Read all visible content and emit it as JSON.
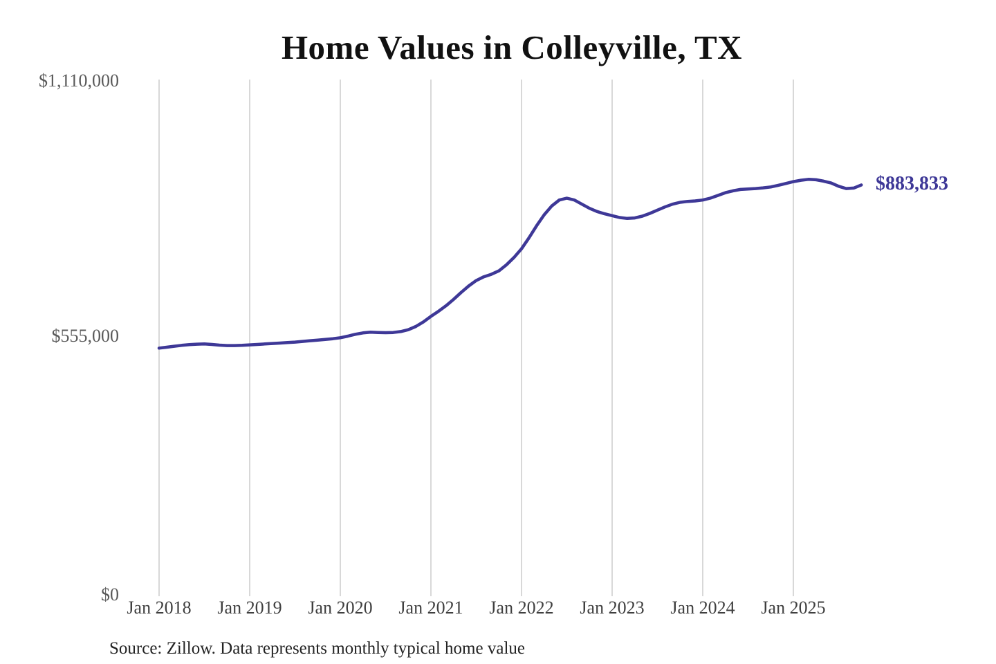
{
  "title": "Home Values in Colleyville, TX",
  "end_label": "$883,833",
  "source_note": "Source: Zillow. Data represents monthly typical home value",
  "colors": {
    "line": "#3e3897",
    "end_label_text": "#3e3897",
    "grid": "#cccccc",
    "y_tick_text": "#595959",
    "x_tick_text": "#3f3f3f",
    "title_text": "#111111",
    "source_text": "#232323",
    "background": "#ffffff"
  },
  "chart_data": {
    "type": "line",
    "title": "Home Values in Colleyville, TX",
    "xlabel": "",
    "ylabel": "",
    "ylim": [
      0,
      1110000
    ],
    "y_ticks": [
      0,
      555000,
      1110000
    ],
    "y_tick_labels": [
      "$0",
      "$555,000",
      "$1,110,000"
    ],
    "x_tick_labels": [
      "Jan 2018",
      "Jan 2019",
      "Jan 2020",
      "Jan 2021",
      "Jan 2022",
      "Jan 2023",
      "Jan 2024",
      "Jan 2025"
    ],
    "grid": "vertical-only",
    "legend_position": "none",
    "end_value": 883833,
    "series": [
      {
        "name": "Monthly typical home value",
        "interval": "monthly",
        "start_month": "2018-01",
        "end_month": "2025-10",
        "values": [
          529000,
          531000,
          533000,
          535000,
          536500,
          537500,
          538000,
          537000,
          535500,
          534500,
          534500,
          535000,
          536000,
          537000,
          538000,
          539000,
          540000,
          541000,
          542000,
          543500,
          545000,
          546500,
          548000,
          549500,
          551500,
          555000,
          559000,
          562000,
          563500,
          563000,
          562500,
          563000,
          565000,
          569000,
          576000,
          586000,
          598000,
          609000,
          621000,
          635000,
          650000,
          664000,
          676000,
          684000,
          689500,
          697000,
          710000,
          726000,
          745000,
          769000,
          795000,
          819000,
          838000,
          851000,
          855000,
          851000,
          842000,
          833000,
          826000,
          821000,
          817000,
          813000,
          811000,
          812000,
          816000,
          822000,
          829000,
          836000,
          842000,
          846000,
          848000,
          849000,
          851000,
          855000,
          861000,
          867000,
          871000,
          874000,
          875000,
          876000,
          877500,
          879500,
          883000,
          887000,
          891000,
          894000,
          896000,
          895000,
          892000,
          888000,
          881000,
          876000,
          877000,
          883833
        ]
      }
    ]
  }
}
